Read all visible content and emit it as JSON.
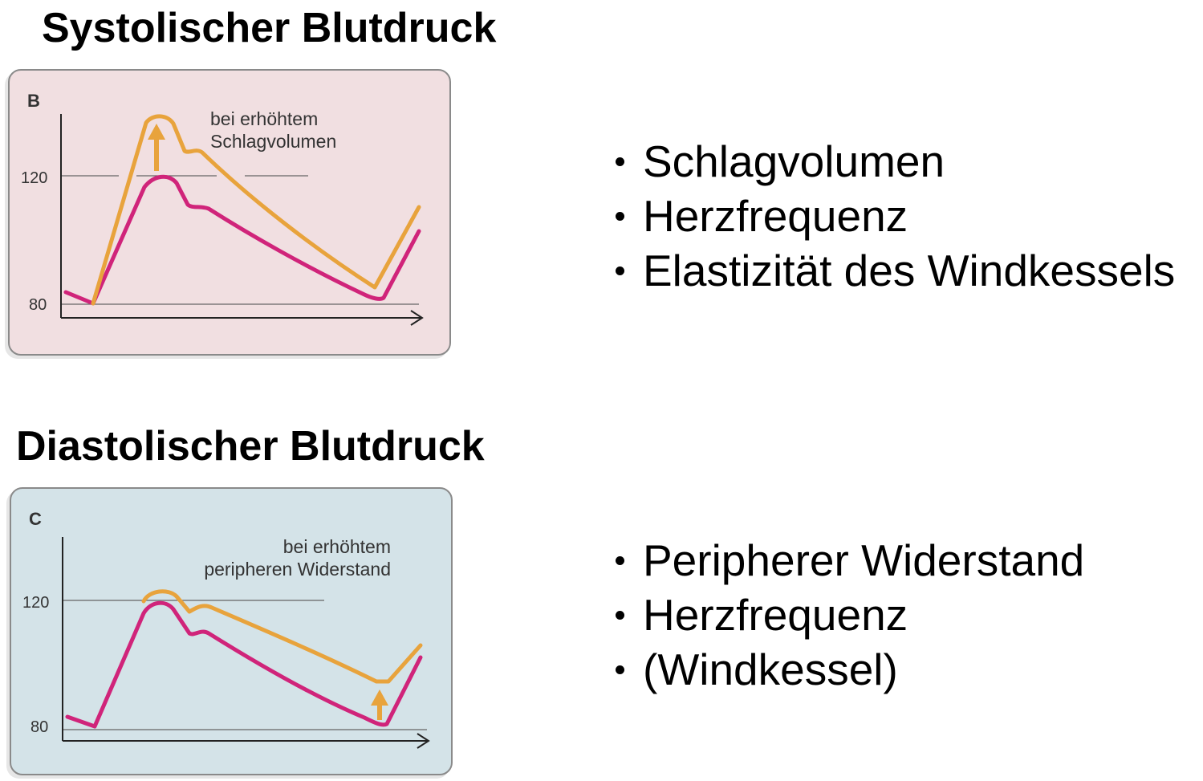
{
  "systolic": {
    "heading": "Systolischer Blutdruck",
    "panel": {
      "letter": "B",
      "annotation_line1": "bei erhöhtem",
      "annotation_line2": "Schlagvolumen",
      "ticks": [
        "120",
        "80"
      ]
    },
    "bullets": [
      "Schlagvolumen",
      "Herzfrequenz",
      "Elastizität des Windkessels"
    ]
  },
  "diastolic": {
    "heading": "Diastolischer Blutdruck",
    "panel": {
      "letter": "C",
      "annotation_line1": "bei erhöhtem",
      "annotation_line2": "peripheren Widerstand",
      "ticks": [
        "120",
        "80"
      ]
    },
    "bullets": [
      "Peripherer Widerstand",
      "Herzfrequenz",
      "(Windkessel)"
    ]
  },
  "colors": {
    "baseline_curve": "#d0247a",
    "elevated_curve": "#e8a33c",
    "panel_b_bg": "#f1dfe1",
    "panel_c_bg": "#d4e3e8"
  },
  "icons": {
    "increase_arrow": "up-arrow-icon",
    "axis_arrow": "arrow-right-icon"
  }
}
